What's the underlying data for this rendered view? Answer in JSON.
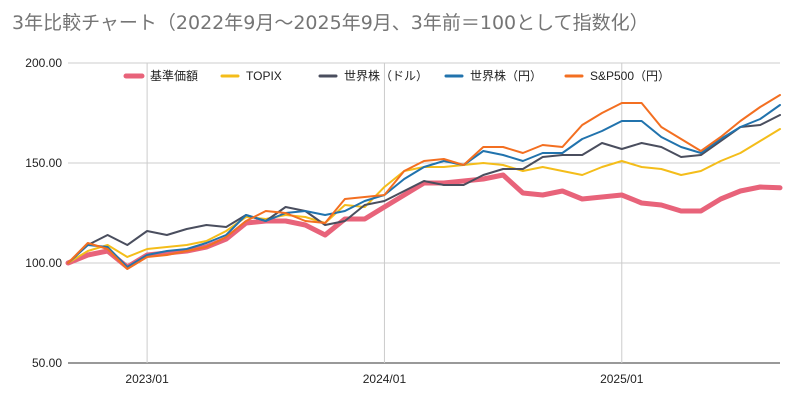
{
  "chart_data": {
    "type": "line",
    "title": "3年比較チャート（2022年9月～2025年9月、3年前＝100として指数化）",
    "ylim": [
      50,
      200
    ],
    "y_ticks": [
      "200.00",
      "150.00",
      "100.00",
      "50.00"
    ],
    "y_tick_values": [
      200,
      150,
      100,
      50
    ],
    "x_ticks": [
      "2023/01",
      "2024/01",
      "2025/01"
    ],
    "x_tick_values": [
      "2023-01",
      "2024-01",
      "2025-01"
    ],
    "grid": true,
    "legend_position": "top",
    "x": [
      "2022-09",
      "2022-10",
      "2022-11",
      "2022-12",
      "2023-01",
      "2023-02",
      "2023-03",
      "2023-04",
      "2023-05",
      "2023-06",
      "2023-07",
      "2023-08",
      "2023-09",
      "2023-10",
      "2023-11",
      "2023-12",
      "2024-01",
      "2024-02",
      "2024-03",
      "2024-04",
      "2024-05",
      "2024-06",
      "2024-07",
      "2024-08",
      "2024-09",
      "2024-10",
      "2024-11",
      "2024-12",
      "2025-01",
      "2025-02",
      "2025-03",
      "2025-04",
      "2025-05",
      "2025-06",
      "2025-07",
      "2025-08",
      "2025-09"
    ],
    "series": [
      {
        "name": "基準価額",
        "color": "#e8637a",
        "stroke_width": 5,
        "values": [
          100,
          104,
          106,
          98,
          104,
          105,
          106,
          108,
          112,
          120,
          121,
          121,
          119,
          114,
          122,
          122,
          128,
          134,
          140,
          140,
          141,
          142,
          144,
          135,
          134,
          136,
          132,
          133,
          134,
          130,
          129,
          126,
          126,
          132,
          136,
          138,
          137.6
        ]
      },
      {
        "name": "TOPIX",
        "color": "#f4bd1a",
        "stroke_width": 2,
        "values": [
          100,
          106,
          109,
          103,
          107,
          108,
          109,
          111,
          116,
          123,
          122,
          124,
          123,
          120,
          129,
          128,
          138,
          146,
          148,
          148,
          149,
          150,
          149,
          146,
          148,
          146,
          144,
          148,
          151,
          148,
          147,
          144,
          146,
          151,
          155,
          161,
          167
        ]
      },
      {
        "name": "世界株（ドル）",
        "color": "#4a4e5e",
        "stroke_width": 2,
        "values": [
          100,
          109,
          114,
          109,
          116,
          114,
          117,
          119,
          118,
          124,
          121,
          128,
          126,
          119,
          121,
          129,
          131,
          136,
          141,
          139,
          139,
          144,
          147,
          147,
          153,
          154,
          154,
          160,
          157,
          160,
          158,
          153,
          154,
          161,
          168,
          169,
          174
        ]
      },
      {
        "name": "世界株（円）",
        "color": "#2173ad",
        "stroke_width": 2,
        "values": [
          100,
          109,
          108,
          98,
          104,
          106,
          107,
          110,
          114,
          124,
          121,
          125,
          126,
          124,
          126,
          131,
          134,
          142,
          148,
          151,
          149,
          156,
          154,
          151,
          155,
          155,
          162,
          166,
          171,
          171,
          163,
          158,
          155,
          162,
          168,
          172,
          179
        ]
      },
      {
        "name": "S&P500（円）",
        "color": "#f36f21",
        "stroke_width": 2,
        "values": [
          100,
          110,
          107,
          97,
          103,
          104,
          106,
          108,
          113,
          121,
          126,
          125,
          121,
          120,
          132,
          133,
          134,
          146,
          151,
          152,
          149,
          158,
          158,
          155,
          159,
          158,
          169,
          175,
          180,
          180,
          168,
          162,
          156,
          163,
          171,
          178,
          184
        ]
      }
    ]
  }
}
